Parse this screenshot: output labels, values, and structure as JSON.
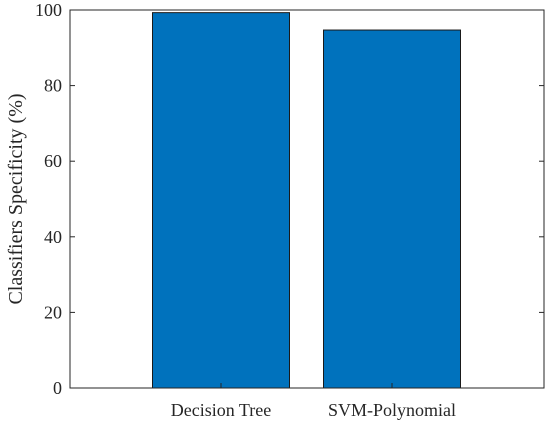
{
  "chart_data": {
    "type": "bar",
    "categories": [
      "Decision Tree",
      "SVM-Polynomial"
    ],
    "values": [
      99.3,
      94.7
    ],
    "title": "",
    "xlabel": "",
    "ylabel": "Classifiers Specificity (%)",
    "ylim": [
      0,
      100
    ],
    "yticks": [
      0,
      20,
      40,
      60,
      80,
      100
    ],
    "grid": false,
    "bar_color": "#0072bd",
    "axis_color": "#262626"
  }
}
